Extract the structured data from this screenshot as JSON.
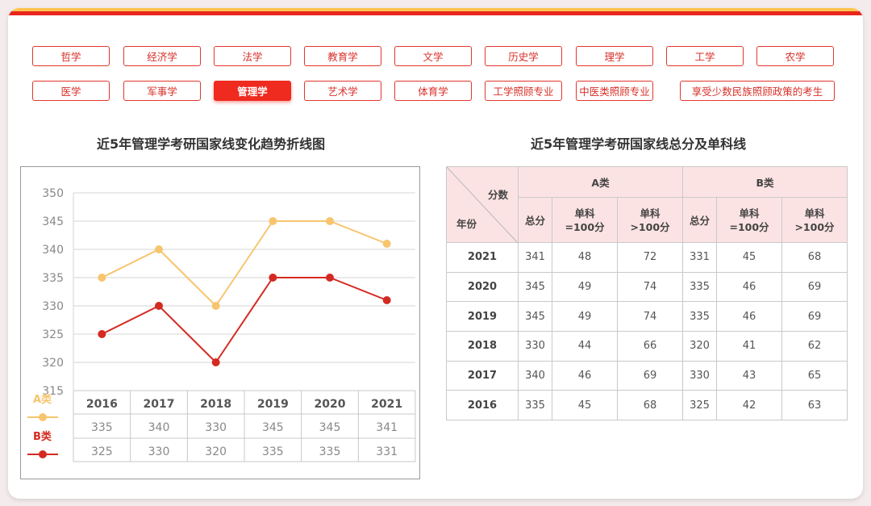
{
  "tabs": [
    {
      "label": "哲学",
      "active": false
    },
    {
      "label": "经济学",
      "active": false
    },
    {
      "label": "法学",
      "active": false
    },
    {
      "label": "教育学",
      "active": false
    },
    {
      "label": "文学",
      "active": false
    },
    {
      "label": "历史学",
      "active": false
    },
    {
      "label": "理学",
      "active": false
    },
    {
      "label": "工学",
      "active": false
    },
    {
      "label": "农学",
      "active": false
    },
    {
      "label": "医学",
      "active": false
    },
    {
      "label": "军事学",
      "active": false
    },
    {
      "label": "管理学",
      "active": true
    },
    {
      "label": "艺术学",
      "active": false
    },
    {
      "label": "体育学",
      "active": false
    },
    {
      "label": "工学照顾专业",
      "active": false
    },
    {
      "label": "中医类照顾专业",
      "active": false
    },
    {
      "label": "享受少数民族照顾政策的考生",
      "active": false
    }
  ],
  "chart_title": "近5年管理学考研国家线变化趋势折线图",
  "table_title": "近5年管理学考研国家线总分及单科线",
  "colors": {
    "accent": "#ef2a1f",
    "seriesA": "#f7c56e",
    "seriesB": "#d42a22",
    "header_bg": "#fce3e3"
  },
  "chart_data": {
    "type": "line",
    "title": "近5年管理学考研国家线变化趋势折线图",
    "categories": [
      "2016",
      "2017",
      "2018",
      "2019",
      "2020",
      "2021"
    ],
    "series": [
      {
        "name": "A类",
        "values": [
          335,
          340,
          330,
          345,
          345,
          341
        ]
      },
      {
        "name": "B类",
        "values": [
          325,
          330,
          320,
          335,
          335,
          331
        ]
      }
    ],
    "yticks": [
      350,
      345,
      340,
      335,
      330,
      325,
      320,
      315
    ],
    "ylim": [
      315,
      350
    ],
    "grid": true,
    "legend": "bottom-left"
  },
  "table": {
    "corner_top": "分数",
    "corner_bottom": "年份",
    "group_a": "A类",
    "group_b": "B类",
    "col_total": "总分",
    "col_eq_line1": "单科",
    "col_eq_line2": "=100分",
    "col_gt_line1": "单科",
    "col_gt_line2": ">100分",
    "rows": [
      {
        "year": "2021",
        "a_total": "341",
        "a_eq": "48",
        "a_gt": "72",
        "b_total": "331",
        "b_eq": "45",
        "b_gt": "68"
      },
      {
        "year": "2020",
        "a_total": "345",
        "a_eq": "49",
        "a_gt": "74",
        "b_total": "335",
        "b_eq": "46",
        "b_gt": "69"
      },
      {
        "year": "2019",
        "a_total": "345",
        "a_eq": "49",
        "a_gt": "74",
        "b_total": "335",
        "b_eq": "46",
        "b_gt": "69"
      },
      {
        "year": "2018",
        "a_total": "330",
        "a_eq": "44",
        "a_gt": "66",
        "b_total": "320",
        "b_eq": "41",
        "b_gt": "62"
      },
      {
        "year": "2017",
        "a_total": "340",
        "a_eq": "46",
        "a_gt": "69",
        "b_total": "330",
        "b_eq": "43",
        "b_gt": "65"
      },
      {
        "year": "2016",
        "a_total": "335",
        "a_eq": "45",
        "a_gt": "68",
        "b_total": "325",
        "b_eq": "42",
        "b_gt": "63"
      }
    ]
  }
}
